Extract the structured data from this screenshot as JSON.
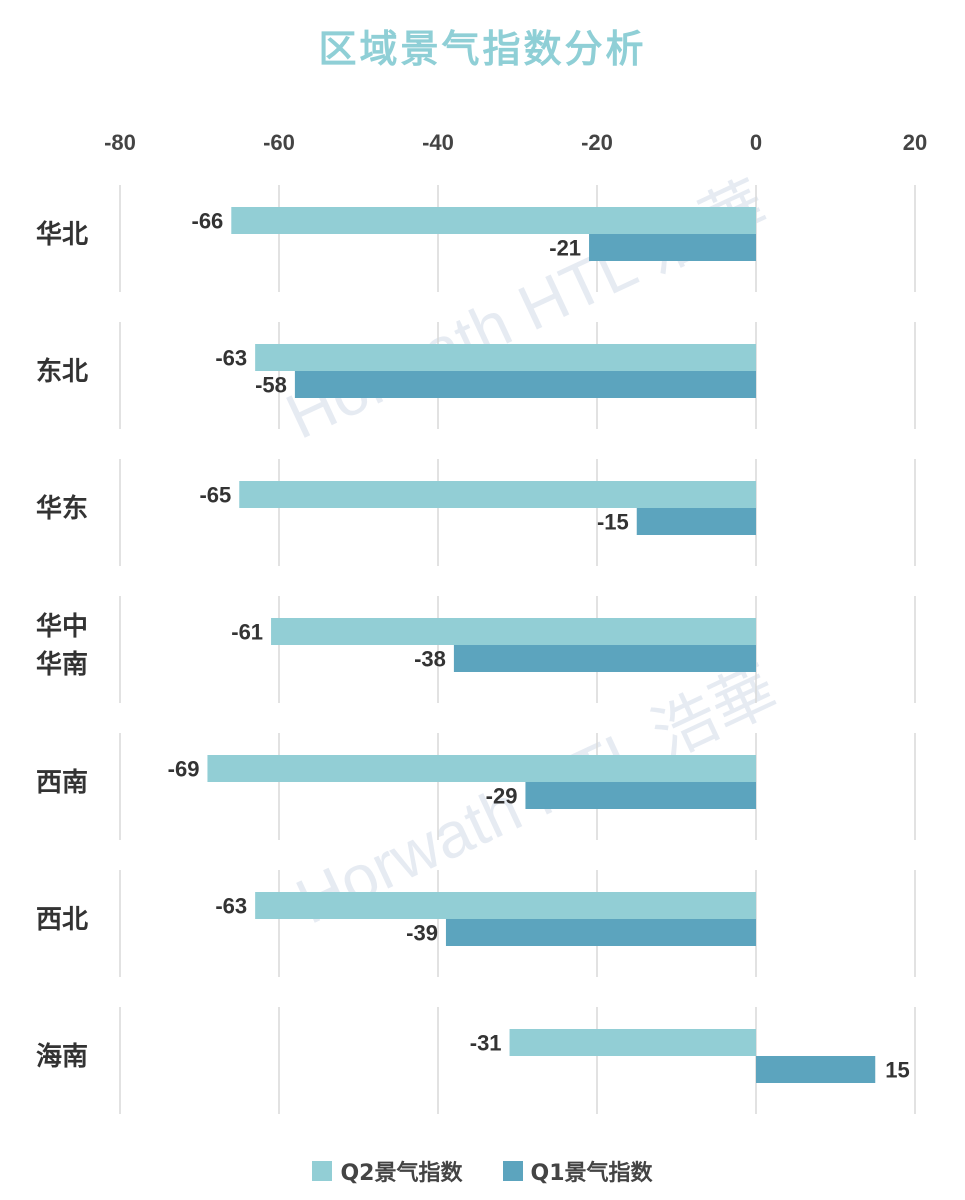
{
  "title": "区域景气指数分析",
  "watermark": "Horwath HTL 浩華",
  "colors": {
    "q2": "#92ced5",
    "q1": "#5ca4be",
    "grid": "#d9d9d9"
  },
  "chart_data": {
    "type": "bar",
    "orientation": "horizontal",
    "title": "区域景气指数分析",
    "xlim": [
      -80,
      20
    ],
    "xticks": [
      -80,
      -60,
      -40,
      -20,
      0,
      20
    ],
    "categories": [
      "华北",
      "东北",
      "华东",
      "华中\n华南",
      "西南",
      "西北",
      "海南"
    ],
    "series": [
      {
        "name": "Q2景气指数",
        "values": [
          -66,
          -63,
          -65,
          -61,
          -69,
          -63,
          -31
        ]
      },
      {
        "name": "Q1景气指数",
        "values": [
          -21,
          -58,
          -15,
          -38,
          -29,
          -39,
          15
        ]
      }
    ],
    "legend": "bottom",
    "grid": true
  }
}
